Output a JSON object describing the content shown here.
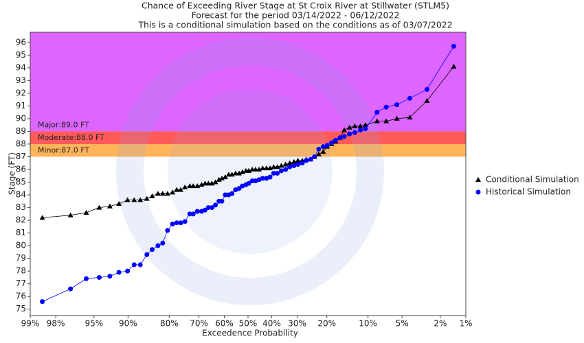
{
  "chart_data": {
    "type": "line",
    "title": "Chance of Exceeding River Stage at St Croix River at Stillwater (STLM5)",
    "subtitle": [
      "Forecast for the period 03/14/2022 - 06/12/2022",
      "This is a conditional simulation based on the conditions as of 03/07/2022"
    ],
    "x_label": "Exceedence Probability",
    "y_label": "Stage (FT)",
    "x_scale": "probability",
    "xlim": [
      99,
      1
    ],
    "xticks": [
      {
        "value": 99,
        "label": "99%"
      },
      {
        "value": 98,
        "label": "98%"
      },
      {
        "value": 95,
        "label": "95%"
      },
      {
        "value": 90,
        "label": "90%"
      },
      {
        "value": 80,
        "label": "80%"
      },
      {
        "value": 70,
        "label": "70%"
      },
      {
        "value": 60,
        "label": "60%"
      },
      {
        "value": 50,
        "label": "50%"
      },
      {
        "value": 40,
        "label": "40%"
      },
      {
        "value": 30,
        "label": "30%"
      },
      {
        "value": 20,
        "label": "20%"
      },
      {
        "value": 10,
        "label": "10%"
      },
      {
        "value": 5,
        "label": "5%"
      },
      {
        "value": 2,
        "label": "2%"
      },
      {
        "value": 1,
        "label": "1%"
      }
    ],
    "ylim": [
      74.5,
      96.8
    ],
    "yticks": [
      75,
      76,
      77,
      78,
      79,
      80,
      81,
      82,
      83,
      84,
      85,
      86,
      87,
      88,
      89,
      90,
      91,
      92,
      93,
      94,
      95,
      96
    ],
    "thresholds": [
      {
        "label": "Major:89.0 FT",
        "value": 89,
        "color": "#dd66ff"
      },
      {
        "label": "Moderate:88.0 FT",
        "value": 88,
        "color": "#ff5a5a"
      },
      {
        "label": "Minor:87.0 FT",
        "value": 87,
        "color": "#ffb45a"
      }
    ],
    "legend": "right",
    "x": [
      98.6,
      97.1,
      95.8,
      94.4,
      93.0,
      91.6,
      90.1,
      88.8,
      87.5,
      86.0,
      84.7,
      83.2,
      81.9,
      80.5,
      79.0,
      77.7,
      76.4,
      75.0,
      73.3,
      72.1,
      70.6,
      69.0,
      67.7,
      66.4,
      65.0,
      63.6,
      62.2,
      61.0,
      59.6,
      58.2,
      56.8,
      55.3,
      53.8,
      52.4,
      50.9,
      49.7,
      48.2,
      46.8,
      45.3,
      43.8,
      42.2,
      40.7,
      39.2,
      37.7,
      36.1,
      34.4,
      32.8,
      31.2,
      29.7,
      28.1,
      26.7,
      25.2,
      23.9,
      22.5,
      21.1,
      19.9,
      18.6,
      17.5,
      16.3,
      15.2,
      13.9,
      12.7,
      11.5,
      10.5,
      8.4,
      7.0,
      5.6,
      4.2,
      2.8,
      1.4
    ],
    "series": [
      {
        "name": "Conditional Simulation",
        "color": "#000000",
        "marker": "triangle",
        "values": [
          82.2,
          82.4,
          82.6,
          83.0,
          83.1,
          83.3,
          83.6,
          83.6,
          83.6,
          83.7,
          83.9,
          84.1,
          84.1,
          84.1,
          84.2,
          84.4,
          84.4,
          84.6,
          84.7,
          84.7,
          84.7,
          84.8,
          84.9,
          84.9,
          84.9,
          85.0,
          85.2,
          85.3,
          85.4,
          85.6,
          85.6,
          85.7,
          85.7,
          85.8,
          85.9,
          85.9,
          86.0,
          86.0,
          86.0,
          86.1,
          86.1,
          86.1,
          86.2,
          86.2,
          86.3,
          86.4,
          86.5,
          86.6,
          86.7,
          86.7,
          86.8,
          86.8,
          87.0,
          87.2,
          87.4,
          87.8,
          88.0,
          88.2,
          88.5,
          89.1,
          89.3,
          89.4,
          89.4,
          89.5,
          89.8,
          89.8,
          90.0,
          90.1,
          91.4,
          94.1
        ]
      },
      {
        "name": "Historical Simulation",
        "color": "#0000ff",
        "marker": "circle",
        "values": [
          75.6,
          76.6,
          77.4,
          77.5,
          77.6,
          77.9,
          78.0,
          78.5,
          78.5,
          79.3,
          79.7,
          80.0,
          80.2,
          81.2,
          81.7,
          81.8,
          81.8,
          81.9,
          82.5,
          82.5,
          82.7,
          82.7,
          82.8,
          83.0,
          83.0,
          83.2,
          83.5,
          83.5,
          84.0,
          84.0,
          84.1,
          84.4,
          84.5,
          84.7,
          84.8,
          84.9,
          85.1,
          85.1,
          85.2,
          85.3,
          85.3,
          85.4,
          85.7,
          85.7,
          85.9,
          86.0,
          86.2,
          86.3,
          86.4,
          86.5,
          86.7,
          86.8,
          87.0,
          87.6,
          87.8,
          87.9,
          88.1,
          88.3,
          88.5,
          88.6,
          88.8,
          88.9,
          89.1,
          89.2,
          90.5,
          90.9,
          91.1,
          91.6,
          92.3,
          95.7
        ]
      }
    ]
  }
}
